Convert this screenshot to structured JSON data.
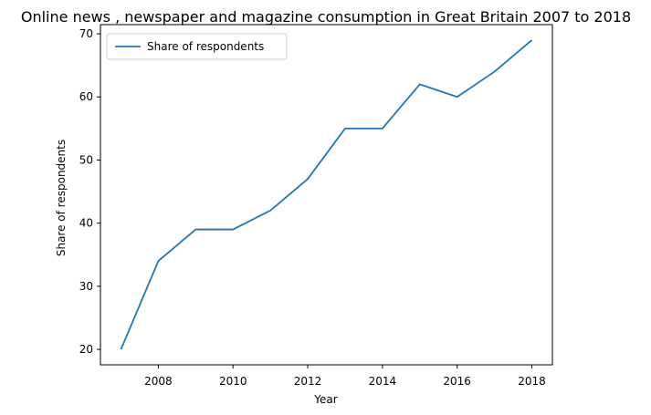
{
  "chart_data": {
    "type": "line",
    "title": "Online news , newspaper and magazine consumption in Great Britain 2007 to 2018",
    "xlabel": "Year",
    "ylabel": "Share of respondents",
    "x": [
      2007,
      2008,
      2009,
      2010,
      2011,
      2012,
      2013,
      2014,
      2015,
      2016,
      2017,
      2018
    ],
    "series": [
      {
        "name": "Share of respondents",
        "values": [
          20,
          34,
          39,
          39,
          42,
          47,
          55,
          55,
          62,
          60,
          64,
          69
        ],
        "color": "#1f77b4"
      }
    ],
    "xlim": [
      2006.45,
      2018.55
    ],
    "ylim": [
      17.55,
      71.45
    ],
    "xticks": [
      "2008",
      "2010",
      "2012",
      "2014",
      "2016",
      "2018"
    ],
    "yticks": [
      "20",
      "30",
      "40",
      "50",
      "60",
      "70"
    ],
    "grid": false,
    "legend_position": "top-left"
  }
}
